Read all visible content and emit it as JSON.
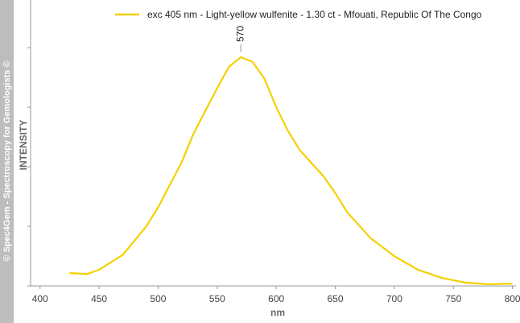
{
  "chart_data": {
    "type": "line",
    "watermark": "© Spec4Gem - Spectroscopy for Gemologists ©",
    "xlabel": "nm",
    "ylabel": "INTENSITY",
    "x": [
      425,
      440,
      450,
      470,
      490,
      500,
      520,
      530,
      550,
      560,
      570,
      580,
      590,
      600,
      610,
      620,
      640,
      650,
      660,
      680,
      700,
      720,
      740,
      760,
      780,
      800
    ],
    "series": [
      {
        "name": "exc 405 nm - Light-yellow wulfenite - 1.30 ct - Mfouati, Republic Of The Congo",
        "color": "#f5d000",
        "values": [
          0.054,
          0.05,
          0.068,
          0.13,
          0.25,
          0.33,
          0.52,
          0.64,
          0.83,
          0.92,
          0.96,
          0.94,
          0.87,
          0.75,
          0.65,
          0.57,
          0.46,
          0.39,
          0.31,
          0.2,
          0.125,
          0.068,
          0.034,
          0.014,
          0.007,
          0.01
        ]
      }
    ],
    "annotations": [
      570
    ],
    "xlim": [
      392,
      803
    ],
    "xticks": [
      400,
      450,
      500,
      550,
      600,
      650,
      700,
      750,
      800
    ],
    "ylim": [
      0,
      1.2
    ],
    "yticks": [
      0,
      0.25,
      0.5,
      0.75,
      1
    ],
    "legend": "top"
  }
}
